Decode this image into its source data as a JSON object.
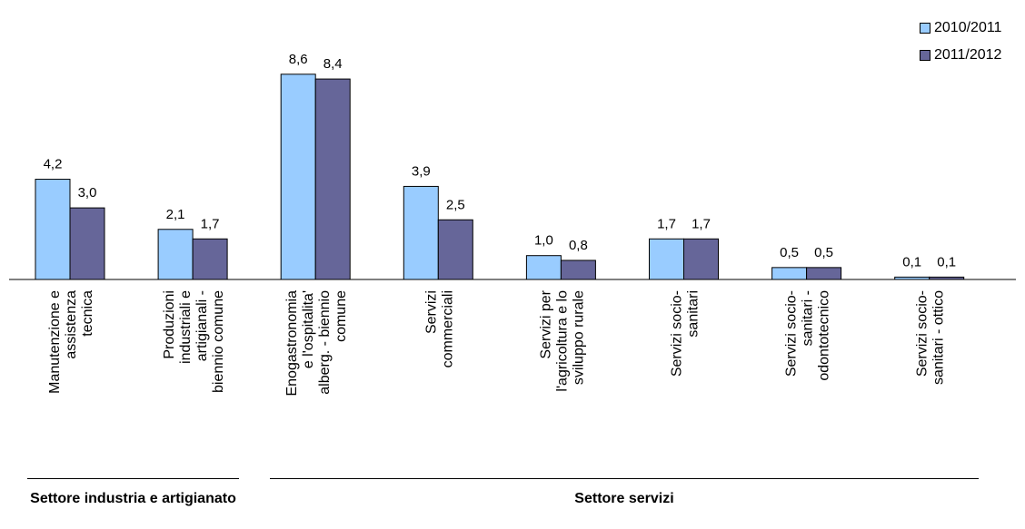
{
  "chart_data": {
    "type": "bar",
    "categories": [
      [
        "Manutenzione e",
        "assistenza",
        "tecnica"
      ],
      [
        "Produzioni",
        "industriali e",
        "artigianali  -",
        "biennio comune"
      ],
      [
        "Enogastronomia",
        "e l'ospitalita'",
        "alberg. - biennio",
        "comune"
      ],
      [
        "Servizi",
        "commerciali"
      ],
      [
        "Servizi per",
        "l'agricoltura e lo",
        "sviluppo rurale"
      ],
      [
        "Servizi socio-",
        "sanitari"
      ],
      [
        "Servizi socio-",
        "sanitari  -",
        "odontotecnico"
      ],
      [
        "Servizi socio-",
        "sanitari - ottico"
      ]
    ],
    "series": [
      {
        "name": "2010/2011",
        "color": "#99ccff",
        "values": [
          4.2,
          2.1,
          8.6,
          3.9,
          1.0,
          1.7,
          0.5,
          0.1
        ],
        "labels": [
          "4,2",
          "2,1",
          "8,6",
          "3,9",
          "1,0",
          "1,7",
          "0,5",
          "0,1"
        ]
      },
      {
        "name": "2011/2012",
        "color": "#666699",
        "values": [
          3.0,
          1.7,
          8.4,
          2.5,
          0.8,
          1.7,
          0.5,
          0.1
        ],
        "labels": [
          "3,0",
          "1,7",
          "8,4",
          "2,5",
          "0,8",
          "1,7",
          "0,5",
          "0,1"
        ]
      }
    ],
    "legend_position": "top-right",
    "grid": false,
    "groups": [
      {
        "label": "Settore industria e artigianato",
        "categories": [
          0,
          1
        ]
      },
      {
        "label": "Settore servizi",
        "categories": [
          2,
          3,
          4,
          5,
          6,
          7
        ]
      }
    ]
  }
}
